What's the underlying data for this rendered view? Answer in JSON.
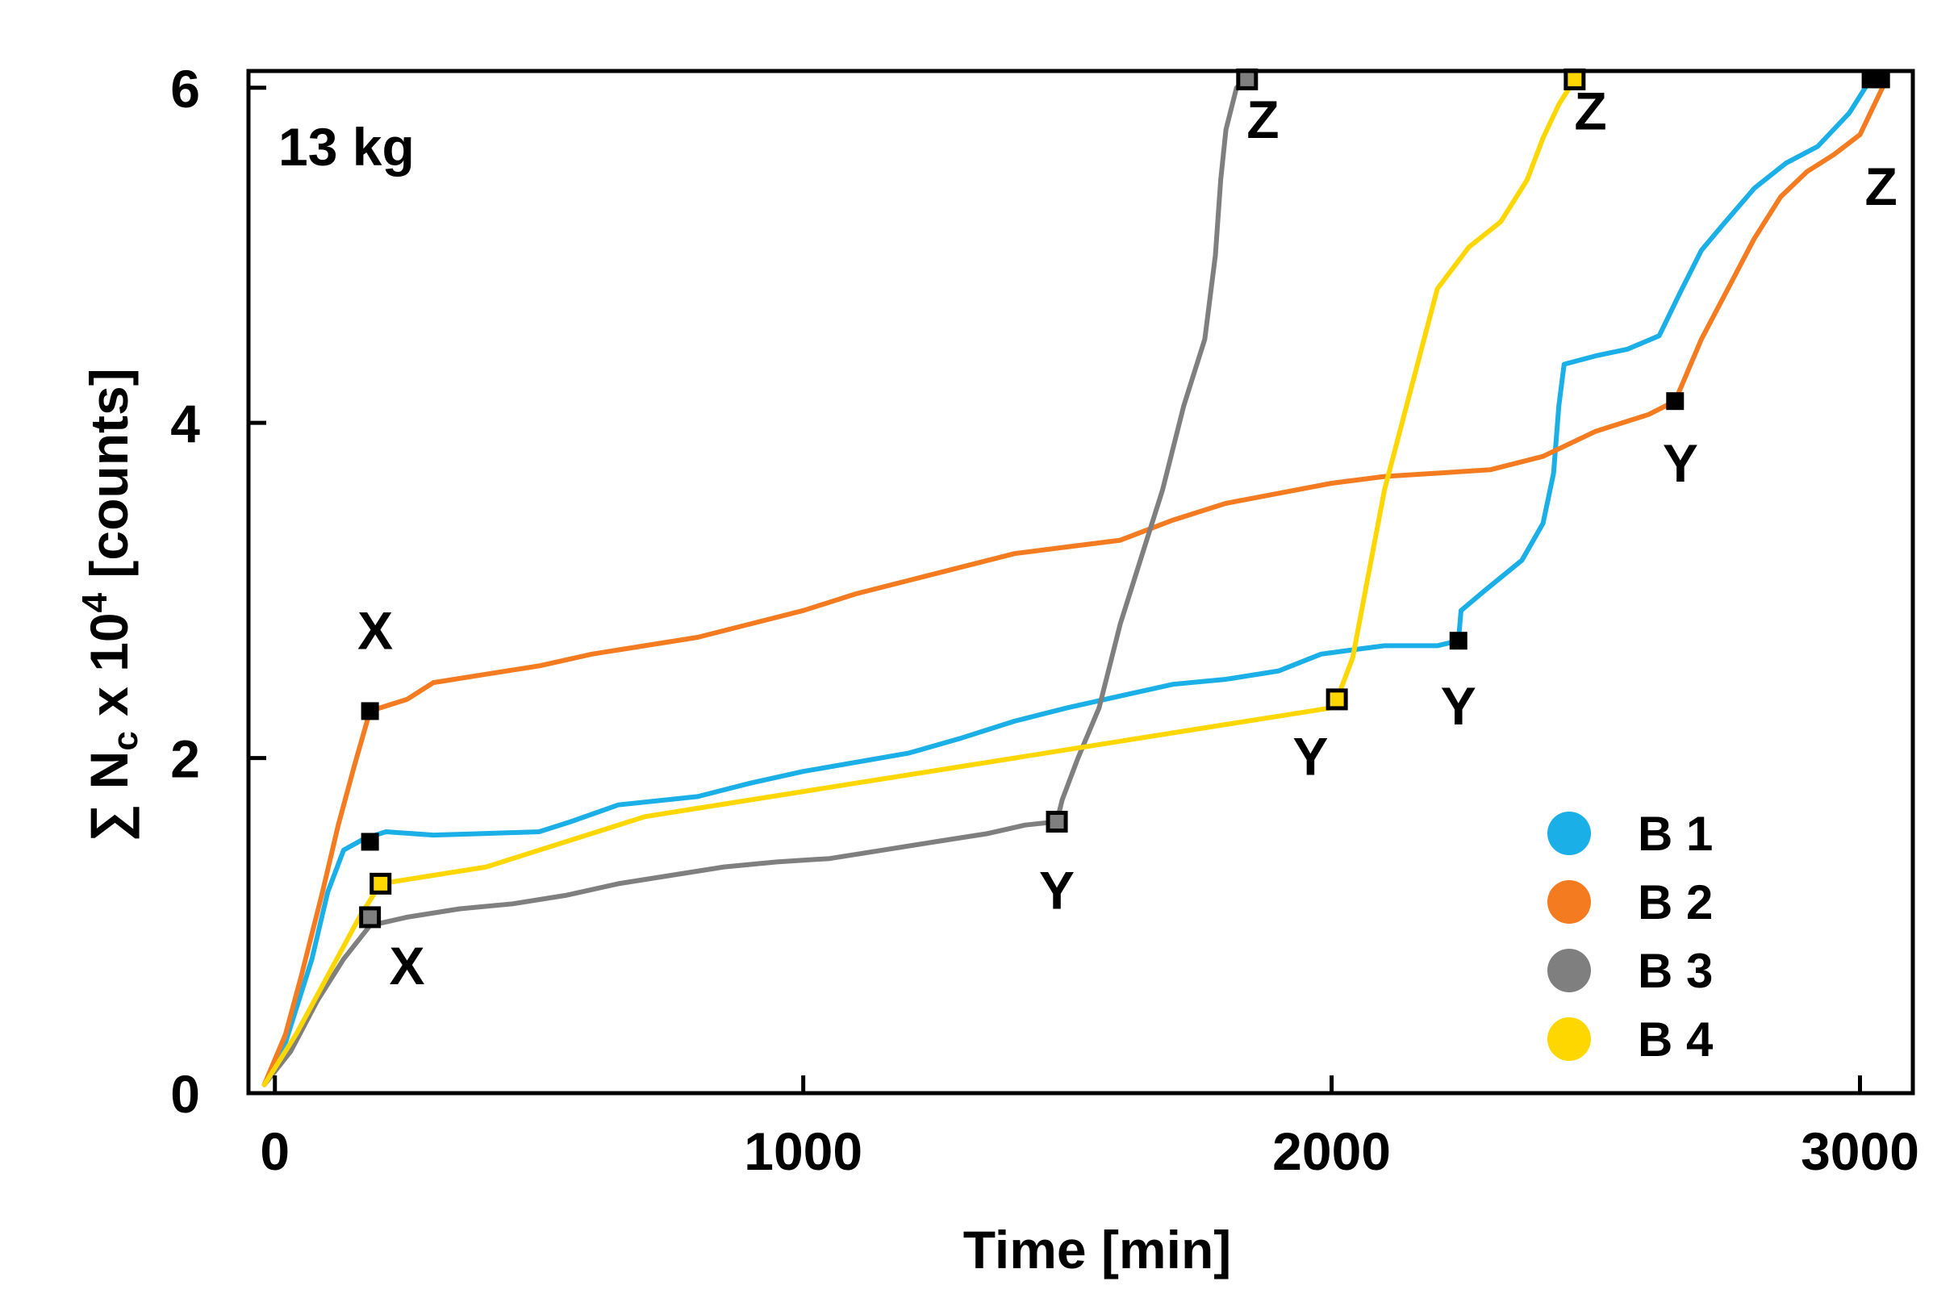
{
  "chart_data": {
    "type": "line",
    "title": "",
    "annotation": "13 kg",
    "xlabel": "Time [min]",
    "ylabel_prefix": "∑ N",
    "ylabel_sub": "c",
    "ylabel_mid": " x 10",
    "ylabel_sup": "4",
    "ylabel_suffix": " [counts]",
    "xlim": [
      -50,
      3100
    ],
    "ylim": [
      0,
      6.1
    ],
    "xticks": [
      0,
      1000,
      2000,
      3000
    ],
    "yticks": [
      0,
      2,
      4,
      6
    ],
    "xtick_labels": [
      "0",
      "1000",
      "2000",
      "3000"
    ],
    "ytick_labels": [
      "0",
      "2",
      "4",
      "6"
    ],
    "legend_position": "bottom-right",
    "series": [
      {
        "name": "B 1",
        "color": "#1AAFE6",
        "points": [
          [
            -20,
            0.05
          ],
          [
            20,
            0.3
          ],
          [
            70,
            0.8
          ],
          [
            100,
            1.2
          ],
          [
            130,
            1.45
          ],
          [
            170,
            1.52
          ],
          [
            210,
            1.56
          ],
          [
            300,
            1.54
          ],
          [
            400,
            1.55
          ],
          [
            500,
            1.56
          ],
          [
            560,
            1.62
          ],
          [
            650,
            1.72
          ],
          [
            800,
            1.77
          ],
          [
            900,
            1.85
          ],
          [
            1000,
            1.92
          ],
          [
            1200,
            2.03
          ],
          [
            1300,
            2.12
          ],
          [
            1400,
            2.22
          ],
          [
            1500,
            2.3
          ],
          [
            1600,
            2.37
          ],
          [
            1700,
            2.44
          ],
          [
            1800,
            2.47
          ],
          [
            1900,
            2.52
          ],
          [
            1980,
            2.62
          ],
          [
            2050,
            2.65
          ],
          [
            2100,
            2.67
          ],
          [
            2200,
            2.67
          ],
          [
            2240,
            2.7
          ],
          [
            2245,
            2.88
          ],
          [
            2290,
            3.0
          ],
          [
            2360,
            3.18
          ],
          [
            2400,
            3.4
          ],
          [
            2420,
            3.7
          ],
          [
            2430,
            4.1
          ],
          [
            2440,
            4.35
          ],
          [
            2500,
            4.4
          ],
          [
            2560,
            4.44
          ],
          [
            2620,
            4.52
          ],
          [
            2660,
            4.78
          ],
          [
            2700,
            5.03
          ],
          [
            2740,
            5.18
          ],
          [
            2800,
            5.4
          ],
          [
            2860,
            5.55
          ],
          [
            2920,
            5.65
          ],
          [
            2980,
            5.85
          ],
          [
            3020,
            6.05
          ]
        ],
        "markers": [
          {
            "label": "X",
            "x": 180,
            "y": 1.5
          },
          {
            "label": "Y",
            "x": 2240,
            "y": 2.7
          },
          {
            "label": "Z",
            "x": 3020,
            "y": 6.05
          }
        ]
      },
      {
        "name": "B 2",
        "color": "#F47B20",
        "points": [
          [
            -20,
            0.05
          ],
          [
            20,
            0.35
          ],
          [
            50,
            0.7
          ],
          [
            90,
            1.2
          ],
          [
            120,
            1.6
          ],
          [
            150,
            1.95
          ],
          [
            180,
            2.28
          ],
          [
            250,
            2.35
          ],
          [
            300,
            2.45
          ],
          [
            400,
            2.5
          ],
          [
            500,
            2.55
          ],
          [
            600,
            2.62
          ],
          [
            700,
            2.67
          ],
          [
            800,
            2.72
          ],
          [
            900,
            2.8
          ],
          [
            1000,
            2.88
          ],
          [
            1100,
            2.98
          ],
          [
            1200,
            3.06
          ],
          [
            1300,
            3.14
          ],
          [
            1400,
            3.22
          ],
          [
            1500,
            3.26
          ],
          [
            1600,
            3.3
          ],
          [
            1700,
            3.42
          ],
          [
            1800,
            3.52
          ],
          [
            1900,
            3.58
          ],
          [
            2000,
            3.64
          ],
          [
            2100,
            3.68
          ],
          [
            2200,
            3.7
          ],
          [
            2300,
            3.72
          ],
          [
            2400,
            3.8
          ],
          [
            2500,
            3.95
          ],
          [
            2600,
            4.05
          ],
          [
            2650,
            4.13
          ],
          [
            2700,
            4.5
          ],
          [
            2750,
            4.8
          ],
          [
            2800,
            5.1
          ],
          [
            2850,
            5.35
          ],
          [
            2900,
            5.5
          ],
          [
            2950,
            5.6
          ],
          [
            3000,
            5.72
          ],
          [
            3050,
            6.05
          ]
        ],
        "markers": [
          {
            "label": "X",
            "x": 180,
            "y": 2.28
          },
          {
            "label": "Y",
            "x": 2650,
            "y": 4.13
          },
          {
            "label": "Z",
            "x": 3040,
            "y": 6.05
          }
        ]
      },
      {
        "name": "B 3",
        "color": "#7F7F7F",
        "points": [
          [
            -20,
            0.05
          ],
          [
            30,
            0.25
          ],
          [
            80,
            0.55
          ],
          [
            130,
            0.8
          ],
          [
            180,
            1.0
          ],
          [
            250,
            1.05
          ],
          [
            350,
            1.1
          ],
          [
            450,
            1.13
          ],
          [
            550,
            1.18
          ],
          [
            650,
            1.25
          ],
          [
            750,
            1.3
          ],
          [
            850,
            1.35
          ],
          [
            950,
            1.38
          ],
          [
            1050,
            1.4
          ],
          [
            1150,
            1.45
          ],
          [
            1250,
            1.5
          ],
          [
            1350,
            1.55
          ],
          [
            1420,
            1.6
          ],
          [
            1480,
            1.62
          ],
          [
            1490,
            1.75
          ],
          [
            1520,
            2.0
          ],
          [
            1560,
            2.3
          ],
          [
            1600,
            2.8
          ],
          [
            1640,
            3.2
          ],
          [
            1680,
            3.6
          ],
          [
            1720,
            4.1
          ],
          [
            1760,
            4.5
          ],
          [
            1780,
            5.0
          ],
          [
            1790,
            5.45
          ],
          [
            1800,
            5.75
          ],
          [
            1820,
            6.0
          ],
          [
            1840,
            6.05
          ]
        ],
        "markers": [
          {
            "label": "X",
            "x": 180,
            "y": 1.05
          },
          {
            "label": "Y",
            "x": 1480,
            "y": 1.62
          },
          {
            "label": "Z",
            "x": 1840,
            "y": 6.05
          }
        ]
      },
      {
        "name": "B 4",
        "color": "#FFD700",
        "points": [
          [
            -20,
            0.05
          ],
          [
            40,
            0.35
          ],
          [
            100,
            0.7
          ],
          [
            160,
            1.05
          ],
          [
            200,
            1.25
          ],
          [
            300,
            1.3
          ],
          [
            400,
            1.35
          ],
          [
            500,
            1.45
          ],
          [
            600,
            1.55
          ],
          [
            700,
            1.65
          ],
          [
            800,
            1.7
          ],
          [
            900,
            1.75
          ],
          [
            1000,
            1.8
          ],
          [
            1100,
            1.85
          ],
          [
            1200,
            1.9
          ],
          [
            1300,
            1.95
          ],
          [
            1400,
            2.0
          ],
          [
            1500,
            2.05
          ],
          [
            1600,
            2.1
          ],
          [
            1700,
            2.15
          ],
          [
            1800,
            2.2
          ],
          [
            1900,
            2.25
          ],
          [
            2000,
            2.3
          ],
          [
            2010,
            2.35
          ],
          [
            2040,
            2.6
          ],
          [
            2070,
            3.1
          ],
          [
            2100,
            3.6
          ],
          [
            2150,
            4.2
          ],
          [
            2200,
            4.8
          ],
          [
            2260,
            5.05
          ],
          [
            2320,
            5.2
          ],
          [
            2370,
            5.45
          ],
          [
            2400,
            5.7
          ],
          [
            2430,
            5.9
          ],
          [
            2460,
            6.05
          ]
        ],
        "markers": [
          {
            "label": "X",
            "x": 200,
            "y": 1.25
          },
          {
            "label": "Y",
            "x": 2010,
            "y": 2.35
          },
          {
            "label": "Z",
            "x": 2460,
            "y": 6.05
          }
        ]
      }
    ],
    "point_labels": [
      {
        "text": "X",
        "x": 190,
        "y": 2.65
      },
      {
        "text": "X",
        "x": 250,
        "y": 0.65
      },
      {
        "text": "Y",
        "x": 1480,
        "y": 1.1
      },
      {
        "text": "Y",
        "x": 1960,
        "y": 1.9
      },
      {
        "text": "Y",
        "x": 2240,
        "y": 2.2
      },
      {
        "text": "Y",
        "x": 2660,
        "y": 3.65
      },
      {
        "text": "Z",
        "x": 1870,
        "y": 5.7
      },
      {
        "text": "Z",
        "x": 2490,
        "y": 5.75
      },
      {
        "text": "Z",
        "x": 3040,
        "y": 5.3
      }
    ]
  }
}
